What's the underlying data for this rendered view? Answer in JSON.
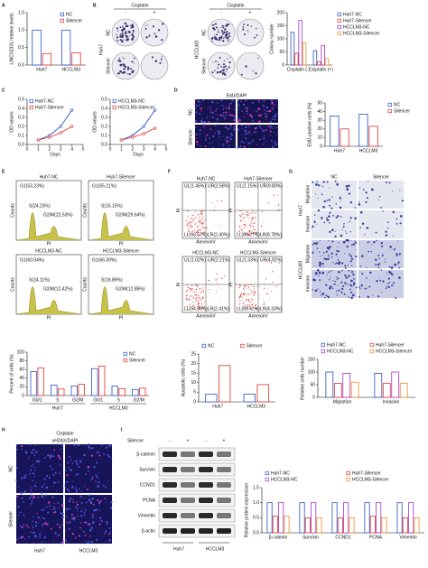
{
  "chart_data": [
    {
      "type": "bar",
      "ylabel": "LINC02331 relative levels",
      "categories": [
        "Huh7",
        "HCCLM3"
      ],
      "series": [
        {
          "name": "NC",
          "color": "#2b4fc4",
          "values": [
            1.0,
            1.0
          ]
        },
        {
          "name": "Silencer",
          "color": "#e0312b",
          "values": [
            0.33,
            0.35
          ]
        }
      ],
      "ylim": [
        0,
        1.5
      ],
      "yticks": [
        {
          "value": 0,
          "label": "0.0"
        },
        {
          "value": 0.5,
          "label": "0.5"
        },
        {
          "value": 1,
          "label": "1.0"
        },
        {
          "value": 1.5,
          "label": "1.5"
        }
      ],
      "legend": "upper right"
    },
    {
      "type": "bar",
      "ylabel": "Colony number",
      "categories": [
        "Cisplatin (-)",
        "Cisplatin (+)"
      ],
      "series": [
        {
          "name": "Huh7-NC",
          "color": "#2b4fc4",
          "values": [
            125,
            55
          ]
        },
        {
          "name": "Huh7-Silencer",
          "color": "#e0312b",
          "values": [
            45,
            12
          ]
        },
        {
          "name": "HCCLM3-NC",
          "color": "#a330c9",
          "values": [
            170,
            75
          ]
        },
        {
          "name": "HCCLM3-Silencer",
          "color": "#f08a1c",
          "values": [
            85,
            25
          ]
        }
      ],
      "ylim": [
        0,
        200
      ],
      "yticks": [
        0,
        50,
        100,
        150,
        200
      ],
      "legend": "right"
    },
    {
      "type": "line",
      "ylabel": "OD values",
      "xlabel": "Days",
      "x": [
        1,
        2,
        3,
        4
      ],
      "xlim": [
        0,
        5
      ],
      "xticks": [
        0,
        1,
        2,
        3,
        4,
        5
      ],
      "series": [
        {
          "name": "Huh7-NC",
          "color": "#2b4fc4",
          "values": [
            0.05,
            0.1,
            0.2,
            0.38
          ]
        },
        {
          "name": "Huh7-Silencer",
          "color": "#e0312b",
          "values": [
            0.05,
            0.08,
            0.13,
            0.2
          ]
        }
      ],
      "ylim": [
        0,
        0.5
      ],
      "yticks": [
        {
          "value": 0,
          "label": "0.0"
        },
        {
          "value": 0.1,
          "label": "0.1"
        },
        {
          "value": 0.2,
          "label": "0.2"
        },
        {
          "value": 0.3,
          "label": "0.3"
        },
        {
          "value": 0.4,
          "label": "0.4"
        },
        {
          "value": 0.5,
          "label": "0.5"
        }
      ],
      "legend": "upper left"
    },
    {
      "type": "line",
      "ylabel": "OD values",
      "xlabel": "Days",
      "x": [
        1,
        2,
        3,
        4
      ],
      "xlim": [
        0,
        5
      ],
      "xticks": [
        0,
        1,
        2,
        3,
        4,
        5
      ],
      "series": [
        {
          "name": "HCCLM3-NC",
          "color": "#2b4fc4",
          "values": [
            0.05,
            0.1,
            0.2,
            0.38
          ]
        },
        {
          "name": "HCCLM3-Silencer",
          "color": "#e0312b",
          "values": [
            0.05,
            0.08,
            0.12,
            0.18
          ]
        }
      ],
      "ylim": [
        0,
        0.5
      ],
      "yticks": [
        {
          "value": 0,
          "label": "0.0"
        },
        {
          "value": 0.1,
          "label": "0.1"
        },
        {
          "value": 0.2,
          "label": "0.2"
        },
        {
          "value": 0.3,
          "label": "0.3"
        },
        {
          "value": 0.4,
          "label": "0.4"
        },
        {
          "value": 0.5,
          "label": "0.5"
        }
      ],
      "legend": "upper left"
    },
    {
      "type": "bar",
      "ylabel": "EdU-positive cells (%)",
      "categories": [
        "Huh7",
        "HCCLM3"
      ],
      "series": [
        {
          "name": "NC",
          "color": "#2b4fc4",
          "values": [
            35,
            37
          ]
        },
        {
          "name": "Silencer",
          "color": "#e0312b",
          "values": [
            20,
            23
          ]
        }
      ],
      "ylim": [
        0,
        50
      ],
      "yticks": [
        0,
        10,
        20,
        30,
        40,
        50
      ],
      "legend": "right"
    },
    {
      "type": "bar",
      "ylabel": "Percent of cells (%)",
      "categories": [
        "G0/1",
        "S",
        "G2/M",
        "G0/1",
        "S",
        "G2/M"
      ],
      "group_labels": [
        "Huh7",
        "HCCLM3"
      ],
      "series": [
        {
          "name": "NC",
          "color": "#2b4fc4",
          "values": [
            55,
            24,
            22,
            62,
            22,
            14
          ]
        },
        {
          "name": "Silencer",
          "color": "#e0312b",
          "values": [
            64,
            15,
            26,
            68,
            16,
            17
          ]
        }
      ],
      "ylim": [
        0,
        100
      ],
      "yticks": [
        0,
        20,
        40,
        60,
        80,
        100
      ],
      "legend": "upper right"
    },
    {
      "type": "bar",
      "ylabel": "Apoptotic cells (%)",
      "categories": [
        "Huh7",
        "HCCLM3"
      ],
      "series": [
        {
          "name": "NC",
          "color": "#2b4fc4",
          "values": [
            4,
            4
          ]
        },
        {
          "name": "Silencer",
          "color": "#e0312b",
          "values": [
            19,
            9
          ]
        }
      ],
      "ylim": [
        0,
        25
      ],
      "yticks": [
        0,
        5,
        10,
        15,
        20,
        25
      ],
      "legend": "top"
    },
    {
      "type": "bar",
      "ylabel": "Relative cells number",
      "categories": [
        "Migration",
        "Invasion"
      ],
      "series": [
        {
          "name": "Huh7-NC",
          "color": "#2b4fc4",
          "values": [
            100,
            95
          ]
        },
        {
          "name": "Huh7-Silencer",
          "color": "#e0312b",
          "values": [
            55,
            55
          ]
        },
        {
          "name": "HCCLM3-NC",
          "color": "#a330c9",
          "values": [
            95,
            100
          ]
        },
        {
          "name": "HCCLM3-Silencer",
          "color": "#f08a1c",
          "values": [
            60,
            55
          ]
        }
      ],
      "ylim": [
        0,
        150
      ],
      "yticks": [
        0,
        50,
        100,
        150
      ],
      "legend": "top"
    },
    {
      "type": "bar",
      "ylabel": "Relative protein expression",
      "categories": [
        "β-catenin",
        "Survivin",
        "CCND1",
        "PCNA",
        "Vimentin"
      ],
      "series": [
        {
          "name": "Huh7-NC",
          "color": "#2b4fc4",
          "values": [
            1.0,
            1.0,
            1.0,
            1.0,
            1.0
          ]
        },
        {
          "name": "Huh7-Silencer",
          "color": "#e0312b",
          "values": [
            0.55,
            0.5,
            0.5,
            0.55,
            0.5
          ]
        },
        {
          "name": "HCCLM3-NC",
          "color": "#a330c9",
          "values": [
            1.0,
            1.0,
            1.0,
            1.0,
            1.0
          ]
        },
        {
          "name": "HCCLM3-Silencer",
          "color": "#f08a1c",
          "values": [
            0.55,
            0.5,
            0.5,
            0.5,
            0.5
          ]
        }
      ],
      "ylim": [
        0,
        1.5
      ],
      "yticks": [
        {
          "value": 0,
          "label": "0.0"
        },
        {
          "value": 0.5,
          "label": "0.5"
        },
        {
          "value": 1,
          "label": "1.0"
        },
        {
          "value": 1.5,
          "label": "1.5"
        }
      ],
      "legend": "top"
    }
  ],
  "panel_labels": [
    "A",
    "B",
    "C",
    "D",
    "E",
    "F",
    "G",
    "H",
    "I"
  ],
  "images": {
    "B": {
      "headers": [
        "Cisplatin",
        "Cisplatin"
      ],
      "signs": [
        "-",
        "+",
        "-",
        "+"
      ],
      "cells": [
        "Huh7",
        "HCCLM3"
      ],
      "rows": [
        "NC",
        "Silencer",
        "NC",
        "Silencer"
      ]
    },
    "D": {
      "stain": "EdU/DAPI",
      "rows": [
        "NC",
        "Silencer"
      ]
    },
    "E": {
      "ylabel": "Counts",
      "xlabel": "PI",
      "plots": [
        {
          "title": "Huh7-NC",
          "gates": [
            "G1(53.23%)",
            "S(24.23%)",
            "G2/M(22.53%)"
          ]
        },
        {
          "title": "Huh7-Silencer",
          "gates": [
            "G1(55.21%)",
            "S(15.15%)",
            "G2/M(29.64%)"
          ]
        },
        {
          "title": "HCCLM3-NC",
          "gates": [
            "G1(60.04%)",
            "S(24.11%)",
            "G2/M(12.42%)"
          ]
        },
        {
          "title": "HCCLM3-Silencer",
          "gates": [
            "G1(66.30%)",
            "S(16.85%)",
            "G2/M(12.85%)"
          ]
        }
      ]
    },
    "F": {
      "ylabel": "PI",
      "xlabel": "AnnexinV",
      "plots": [
        {
          "title": "Huh7-NC",
          "quadrants": [
            "UL(1.45%)",
            "UR(2.58%)",
            "LL(93.57%)",
            "LR(2.40%)"
          ]
        },
        {
          "title": "Huh7-Silencer",
          "quadrants": [
            "UL(1.15%)",
            "UR(9.80%)",
            "LL(80.27%)",
            "LR(8.78%)"
          ]
        },
        {
          "title": "HCCLM3-NC",
          "quadrants": [
            "UL(1.02%)",
            "UR(2.21%)",
            "LL(94.36%)",
            "LR(2.41%)"
          ]
        },
        {
          "title": "HCCLM3-Silencer",
          "quadrants": [
            "UL(1.33%)",
            "UR(4.92%)",
            "LL(89.42%)",
            "LR(4.33%)"
          ]
        }
      ]
    },
    "G": {
      "cols": [
        "NC",
        "Silencer"
      ],
      "rows": [
        "Migration",
        "Invasion",
        "Migration",
        "Invasion"
      ],
      "cells": [
        "Huh7",
        "HCCLM3"
      ]
    },
    "H": {
      "header": "Cisplatin",
      "stain": "γH2AX/DAPI",
      "rows": [
        "NC",
        "Silencer"
      ],
      "cols": [
        "Huh7",
        "HCCLM3"
      ]
    },
    "I": {
      "header": "Silencer",
      "signs": [
        "-",
        "+",
        "-",
        "+"
      ],
      "proteins": [
        "β-catenin",
        "Survivin",
        "CCND1",
        "PCNA",
        "Vimentin",
        "β-actin"
      ],
      "cols": [
        "Huh7",
        "HCCLM3"
      ]
    }
  }
}
